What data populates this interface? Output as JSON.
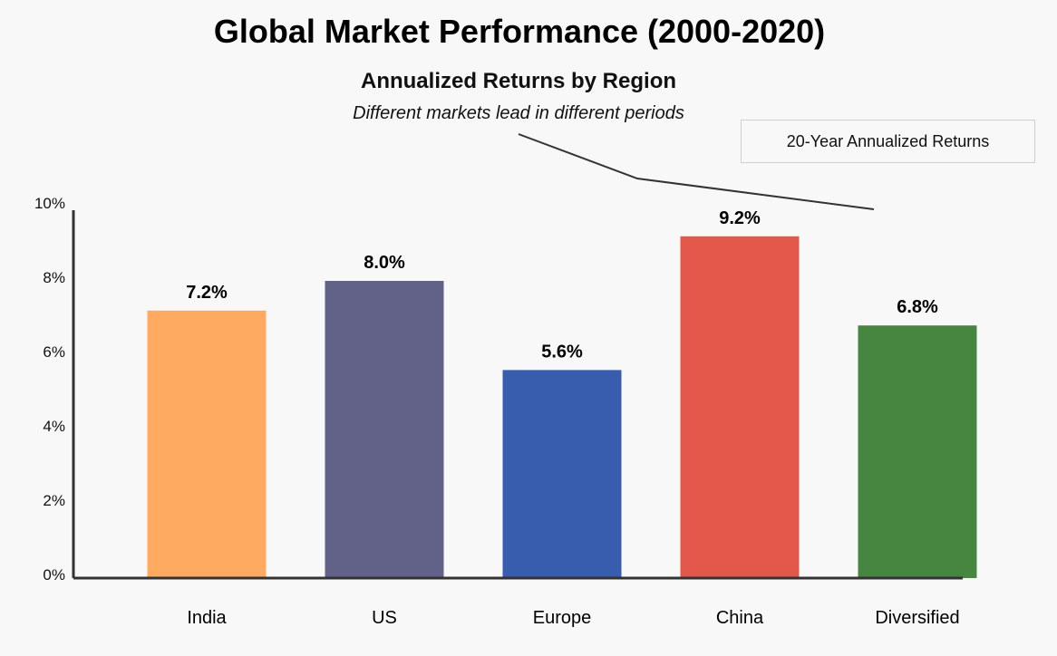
{
  "chart_data": {
    "type": "bar",
    "title": "Global Market Performance (2000-2020)",
    "subtitle": "Annualized Returns by Region",
    "tagline": "Different markets lead in different periods",
    "legend_label": "20-Year Annualized Returns",
    "categories": [
      "India",
      "US",
      "Europe",
      "China",
      "Diversified"
    ],
    "values": [
      7.2,
      8.0,
      5.6,
      9.2,
      6.8
    ],
    "value_labels": [
      "7.2%",
      "8.0%",
      "5.6%",
      "9.2%",
      "6.8%"
    ],
    "colors": [
      "#FFAA60",
      "#626188",
      "#385CAE",
      "#E4584C",
      "#478641"
    ],
    "ylim": [
      0,
      10
    ],
    "yticks": [
      0,
      2,
      4,
      6,
      8,
      10
    ],
    "ytick_labels": [
      "0%",
      "2%",
      "4%",
      "6%",
      "8%",
      "10%"
    ],
    "xlabel": "",
    "ylabel": "",
    "grid": false,
    "legend_position": "top-right"
  }
}
